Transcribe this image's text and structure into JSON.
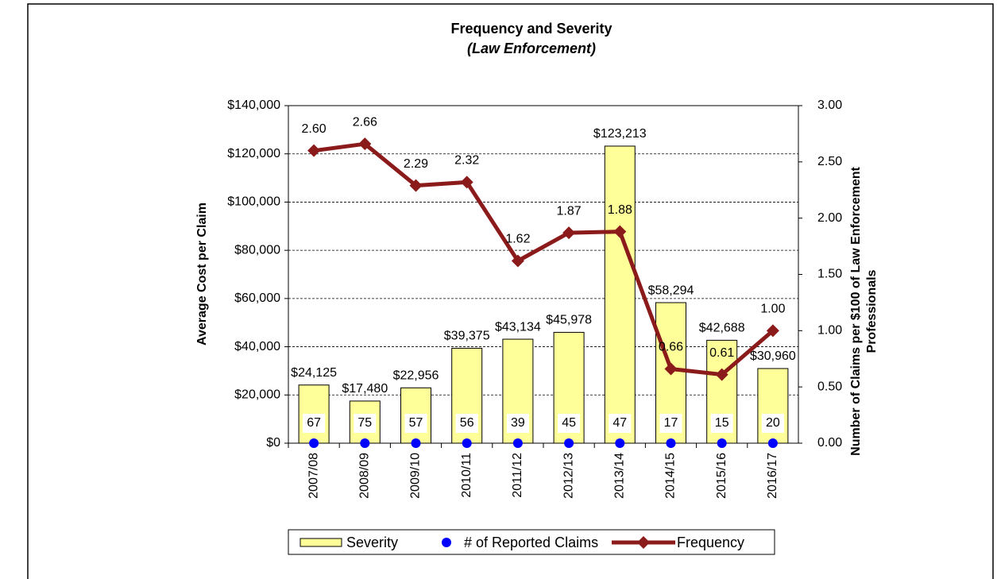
{
  "chart_data": {
    "type": "bar",
    "title": "Frequency and Severity",
    "subtitle": "(Law Enforcement)",
    "y_label": "Average Cost  per Claim",
    "y2_label": [
      "Number of Claims per $100 of Law Enforcement",
      "Professionals"
    ],
    "categories": [
      "2007/08",
      "2008/09",
      "2009/10",
      "2010/11",
      "2011/12",
      "2012/13",
      "2013/14",
      "2014/15",
      "2015/16",
      "2016/17"
    ],
    "ylim": [
      0,
      140000
    ],
    "yticks": [
      {
        "value": 0,
        "label": "$0"
      },
      {
        "value": 20000,
        "label": "$20,000"
      },
      {
        "value": 40000,
        "label": "$40,000"
      },
      {
        "value": 60000,
        "label": "$60,000"
      },
      {
        "value": 80000,
        "label": "$80,000"
      },
      {
        "value": 100000,
        "label": "$100,000"
      },
      {
        "value": 120000,
        "label": "$120,000"
      },
      {
        "value": 140000,
        "label": "$140,000"
      }
    ],
    "y2lim": [
      0,
      3
    ],
    "y2ticks": [
      {
        "value": 0,
        "label": "0.00"
      },
      {
        "value": 0.5,
        "label": "0.50"
      },
      {
        "value": 1,
        "label": "1.00"
      },
      {
        "value": 1.5,
        "label": "1.50"
      },
      {
        "value": 2,
        "label": "2.00"
      },
      {
        "value": 2.5,
        "label": "2.50"
      },
      {
        "value": 3,
        "label": "3.00"
      }
    ],
    "grid": true,
    "series": [
      {
        "name": "Severity",
        "type": "bar",
        "color": "#ffff99",
        "values": [
          24125,
          17480,
          22956,
          39375,
          43134,
          45978,
          123213,
          58294,
          42688,
          30960
        ],
        "value_labels": [
          "$24,125",
          "$17,480",
          "$22,956",
          "$39,375",
          "$43,134",
          "$45,978",
          "$123,213",
          "$58,294",
          "$42,688",
          "$30,960"
        ]
      },
      {
        "name": "# of Reported Claims",
        "type": "scatter",
        "color": "#0000ff",
        "values": [
          67,
          75,
          57,
          56,
          39,
          45,
          47,
          17,
          15,
          20
        ]
      },
      {
        "name": "Frequency",
        "type": "line",
        "axis": "y2",
        "color": "#8b1a1a",
        "values": [
          2.6,
          2.66,
          2.29,
          2.32,
          1.62,
          1.87,
          1.88,
          0.66,
          0.61,
          1.0
        ],
        "value_labels": [
          "2.60",
          "2.66",
          "2.29",
          "2.32",
          "1.62",
          "1.87",
          "1.88",
          "0.66",
          "0.61",
          "1.00"
        ]
      }
    ]
  }
}
